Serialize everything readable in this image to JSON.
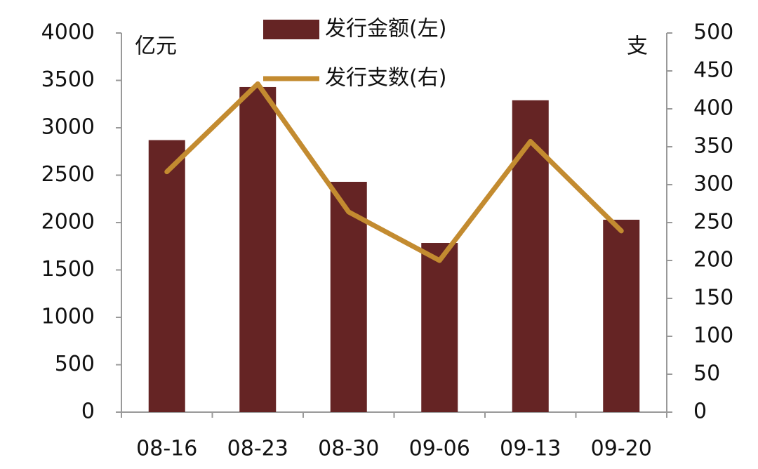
{
  "chart_data": {
    "type": "bar",
    "categories": [
      "08-16",
      "08-23",
      "08-30",
      "09-06",
      "09-13",
      "09-20"
    ],
    "series": [
      {
        "name": "发行金额(左)",
        "type": "bar",
        "color": "#652424",
        "values": [
          2870,
          3430,
          2430,
          1785,
          3290,
          2030
        ]
      },
      {
        "name": "发行支数(右)",
        "type": "line",
        "axis": "y2",
        "color": "#c38b30",
        "values": [
          317,
          433,
          264,
          200,
          357,
          239
        ]
      }
    ],
    "y_unit": "亿元",
    "y2_unit": "支",
    "ylim": [
      0,
      4000
    ],
    "yticks": [
      0,
      500,
      1000,
      1500,
      2000,
      2500,
      3000,
      3500,
      4000
    ],
    "y2lim": [
      0,
      500
    ],
    "y2ticks": [
      0,
      50,
      100,
      150,
      200,
      250,
      300,
      350,
      400,
      450,
      500
    ]
  }
}
